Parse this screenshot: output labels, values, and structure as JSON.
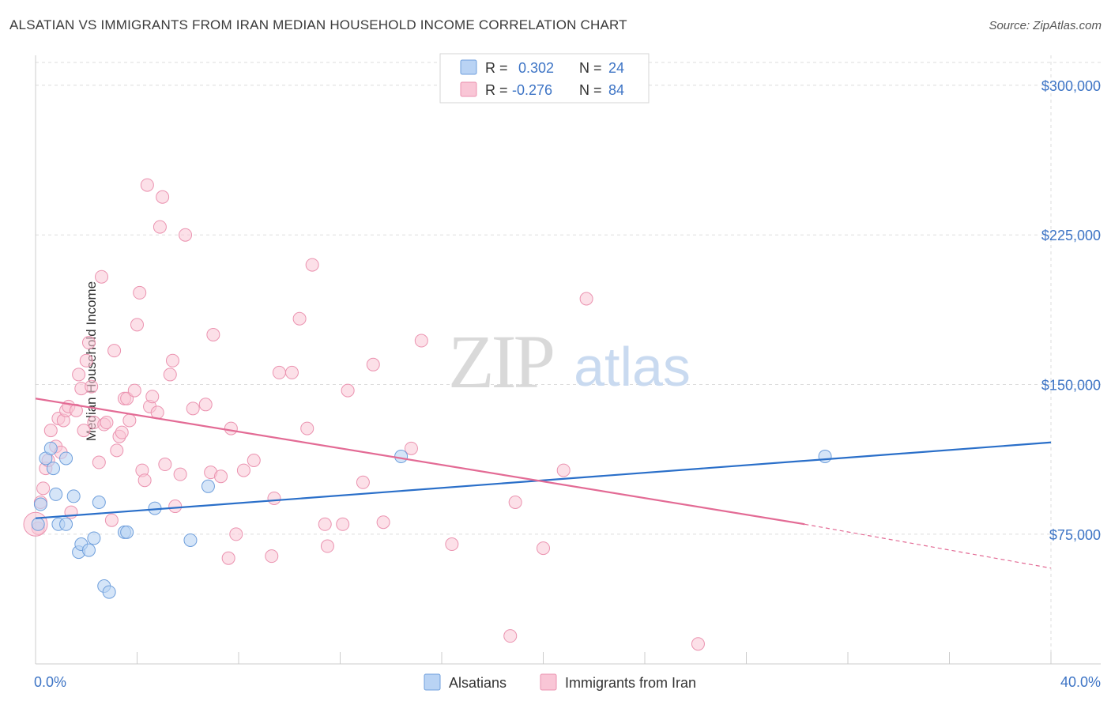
{
  "title": "ALSATIAN VS IMMIGRANTS FROM IRAN MEDIAN HOUSEHOLD INCOME CORRELATION CHART",
  "source": "Source: ZipAtlas.com",
  "watermark": {
    "zip": "ZIP",
    "atlas": "atlas"
  },
  "legend_top": [
    {
      "r_label": "R =",
      "r_value": "0.302",
      "n_label": "N =",
      "n_value": "24"
    },
    {
      "r_label": "R =",
      "r_value": "-0.276",
      "n_label": "N =",
      "n_value": "84"
    }
  ],
  "legend_bottom": [
    "Alsatians",
    "Immigrants from Iran"
  ],
  "colors": {
    "blue_fill": "#b9d3f4",
    "blue_stroke": "#6f9fdc",
    "blue_line": "#2a6fc9",
    "pink_fill": "#f9c6d6",
    "pink_stroke": "#eb93b0",
    "pink_line": "#e36b95",
    "axis_text_blue": "#3d74c5",
    "grid": "#dddddd"
  },
  "chart_data": {
    "type": "scatter",
    "title": "ALSATIAN VS IMMIGRANTS FROM IRAN MEDIAN HOUSEHOLD INCOME CORRELATION CHART",
    "xlabel": "",
    "ylabel": "Median Household Income",
    "xlim": [
      0,
      40
    ],
    "ylim": [
      10000,
      315000
    ],
    "x_tick_labels": [
      "0.0%",
      "40.0%"
    ],
    "y_ticks": [
      75000,
      150000,
      225000,
      300000
    ],
    "y_tick_labels": [
      "$75,000",
      "$150,000",
      "$225,000",
      "$300,000"
    ],
    "grid": true,
    "legend_placement": "top-center",
    "series": [
      {
        "name": "Alsatians",
        "r": 0.302,
        "n": 24,
        "trend": {
          "x": [
            0,
            40
          ],
          "y": [
            83000,
            121000
          ]
        },
        "points": [
          [
            0.1,
            80000
          ],
          [
            0.2,
            90000
          ],
          [
            0.4,
            113000
          ],
          [
            0.6,
            118000
          ],
          [
            0.7,
            108000
          ],
          [
            0.8,
            95000
          ],
          [
            0.9,
            80000
          ],
          [
            1.2,
            113000
          ],
          [
            1.2,
            80000
          ],
          [
            1.5,
            94000
          ],
          [
            1.7,
            66000
          ],
          [
            1.8,
            70000
          ],
          [
            2.1,
            67000
          ],
          [
            2.3,
            73000
          ],
          [
            2.5,
            91000
          ],
          [
            2.7,
            49000
          ],
          [
            2.9,
            46000
          ],
          [
            3.5,
            76000
          ],
          [
            3.6,
            76000
          ],
          [
            4.7,
            88000
          ],
          [
            6.1,
            72000
          ],
          [
            6.8,
            99000
          ],
          [
            14.4,
            114000
          ],
          [
            31.1,
            114000
          ]
        ]
      },
      {
        "name": "Immigrants from Iran",
        "r": -0.276,
        "n": 84,
        "trend": {
          "x": [
            0,
            30.3
          ],
          "y": [
            143000,
            80000
          ]
        },
        "trend_dashed": {
          "x": [
            30.3,
            40
          ],
          "y": [
            80000,
            58000
          ]
        },
        "points": [
          [
            0.1,
            78000
          ],
          [
            0.2,
            91000
          ],
          [
            0.3,
            98000
          ],
          [
            0.4,
            108000
          ],
          [
            0.5,
            112000
          ],
          [
            0.6,
            127000
          ],
          [
            0.8,
            119000
          ],
          [
            0.9,
            133000
          ],
          [
            1.0,
            116000
          ],
          [
            1.1,
            132000
          ],
          [
            1.2,
            137000
          ],
          [
            1.3,
            139000
          ],
          [
            1.4,
            86000
          ],
          [
            1.6,
            137000
          ],
          [
            1.7,
            155000
          ],
          [
            1.8,
            148000
          ],
          [
            1.9,
            127000
          ],
          [
            2.0,
            162000
          ],
          [
            2.1,
            171000
          ],
          [
            2.2,
            149000
          ],
          [
            2.3,
            131000
          ],
          [
            2.5,
            111000
          ],
          [
            2.6,
            204000
          ],
          [
            2.7,
            130000
          ],
          [
            2.8,
            131000
          ],
          [
            3.0,
            82000
          ],
          [
            3.1,
            167000
          ],
          [
            3.2,
            117000
          ],
          [
            3.3,
            124000
          ],
          [
            3.4,
            126000
          ],
          [
            3.5,
            143000
          ],
          [
            3.6,
            143000
          ],
          [
            3.7,
            132000
          ],
          [
            3.9,
            147000
          ],
          [
            4.0,
            180000
          ],
          [
            4.1,
            196000
          ],
          [
            4.2,
            107000
          ],
          [
            4.3,
            102000
          ],
          [
            4.4,
            250000
          ],
          [
            4.5,
            139000
          ],
          [
            4.6,
            144000
          ],
          [
            4.8,
            136000
          ],
          [
            4.9,
            229000
          ],
          [
            5.0,
            244000
          ],
          [
            5.1,
            110000
          ],
          [
            5.3,
            155000
          ],
          [
            5.4,
            162000
          ],
          [
            5.5,
            89000
          ],
          [
            5.7,
            105000
          ],
          [
            5.9,
            225000
          ],
          [
            6.2,
            138000
          ],
          [
            6.7,
            140000
          ],
          [
            6.9,
            106000
          ],
          [
            7.0,
            175000
          ],
          [
            7.3,
            104000
          ],
          [
            7.6,
            63000
          ],
          [
            7.7,
            128000
          ],
          [
            7.9,
            75000
          ],
          [
            8.2,
            107000
          ],
          [
            8.6,
            112000
          ],
          [
            9.3,
            64000
          ],
          [
            9.4,
            93000
          ],
          [
            9.6,
            156000
          ],
          [
            10.1,
            156000
          ],
          [
            10.4,
            183000
          ],
          [
            10.7,
            128000
          ],
          [
            10.9,
            210000
          ],
          [
            11.4,
            80000
          ],
          [
            11.5,
            69000
          ],
          [
            12.1,
            80000
          ],
          [
            12.3,
            147000
          ],
          [
            12.9,
            101000
          ],
          [
            13.3,
            160000
          ],
          [
            13.7,
            81000
          ],
          [
            14.8,
            118000
          ],
          [
            15.2,
            172000
          ],
          [
            16.4,
            70000
          ],
          [
            18.7,
            24000
          ],
          [
            18.9,
            91000
          ],
          [
            20.0,
            68000
          ],
          [
            20.8,
            107000
          ],
          [
            21.7,
            193000
          ],
          [
            26.1,
            20000
          ],
          [
            0.0,
            80000
          ]
        ]
      }
    ]
  }
}
